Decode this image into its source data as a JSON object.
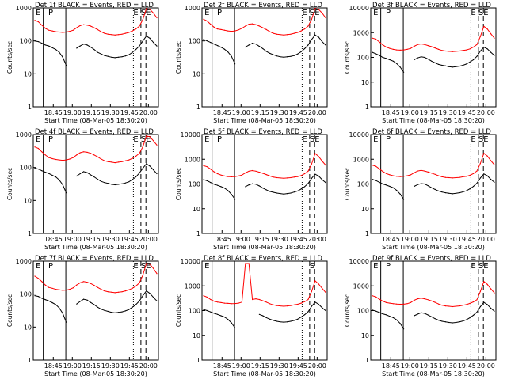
{
  "figure": {
    "colors": {
      "background": "#ffffff",
      "axes": "#000000",
      "events": "#000000",
      "lld": "#ff0000"
    }
  },
  "chart_data": [
    {
      "type": "line",
      "title": "Det 1f BLACK = Events, RED = LLD",
      "ylabel": "Counts/sec",
      "xlabel": "Start Time (08-Mar-05 18:30:20)",
      "xtick_labels": [
        "18:45",
        "19:00",
        "19:15",
        "19:30",
        "19:45",
        "20:00"
      ],
      "ytick_labels": [
        "1",
        "10",
        "100",
        "1000"
      ],
      "ylim": [
        1,
        1000
      ],
      "y_scale": "log",
      "markers": [
        "E",
        "P",
        "E",
        "S",
        "E"
      ],
      "series": [
        {
          "color": "#ff0000",
          "values": [
            420,
            380,
            300,
            240,
            210,
            200,
            190,
            185,
            180,
            185,
            195,
            210,
            250,
            290,
            310,
            300,
            280,
            250,
            220,
            190,
            170,
            160,
            155,
            150,
            155,
            160,
            170,
            180,
            200,
            230,
            280,
            450,
            950,
            900,
            700,
            500
          ]
        },
        {
          "color": "#000000",
          "values": [
            100,
            95,
            85,
            75,
            70,
            62,
            55,
            45,
            32,
            18,
            null,
            null,
            60,
            70,
            80,
            75,
            65,
            55,
            45,
            40,
            36,
            34,
            32,
            31,
            32,
            33,
            35,
            38,
            45,
            55,
            70,
            100,
            140,
            120,
            90,
            70
          ]
        }
      ]
    },
    {
      "type": "line",
      "title": "Det 2f BLACK = Events, RED = LLD",
      "ylabel": "Counts/sec",
      "xlabel": "Start Time (08-Mar-05 18:30:20)",
      "xtick_labels": [
        "18:45",
        "19:00",
        "19:15",
        "19:30",
        "19:45",
        "20:00"
      ],
      "ytick_labels": [
        "1",
        "10",
        "100",
        "1000"
      ],
      "ylim": [
        1,
        1000
      ],
      "y_scale": "log",
      "markers": [
        "E",
        "P",
        "E",
        "S",
        "E"
      ],
      "series": [
        {
          "color": "#ff0000",
          "values": [
            450,
            400,
            320,
            260,
            230,
            220,
            210,
            200,
            195,
            200,
            215,
            240,
            280,
            320,
            330,
            310,
            280,
            250,
            220,
            190,
            170,
            160,
            155,
            150,
            155,
            160,
            170,
            180,
            200,
            230,
            280,
            450,
            950,
            900,
            700,
            500
          ]
        },
        {
          "color": "#000000",
          "values": [
            110,
            100,
            90,
            80,
            72,
            64,
            56,
            46,
            34,
            20,
            null,
            null,
            65,
            75,
            85,
            80,
            68,
            58,
            48,
            42,
            38,
            35,
            33,
            32,
            33,
            34,
            36,
            40,
            47,
            58,
            75,
            110,
            150,
            130,
            95,
            75
          ]
        }
      ]
    },
    {
      "type": "line",
      "title": "Det 3f BLACK = Events, RED = LLD",
      "ylabel": "Counts/sec",
      "xlabel": "Start Time (08-Mar-05 18:30:20)",
      "xtick_labels": [
        "18:45",
        "19:00",
        "19:15",
        "19:30",
        "19:45",
        "20:00"
      ],
      "ytick_labels": [
        "1",
        "10",
        "100",
        "1000",
        "10000"
      ],
      "ylim": [
        1,
        10000
      ],
      "y_scale": "log",
      "markers": [
        "E",
        "P",
        "E",
        "S",
        "E"
      ],
      "series": [
        {
          "color": "#ff0000",
          "values": [
            600,
            550,
            420,
            320,
            260,
            230,
            210,
            200,
            195,
            200,
            210,
            230,
            280,
            330,
            350,
            330,
            300,
            270,
            240,
            210,
            190,
            180,
            175,
            170,
            175,
            180,
            190,
            200,
            220,
            260,
            330,
            700,
            1800,
            1400,
            900,
            600
          ]
        },
        {
          "color": "#000000",
          "values": [
            160,
            140,
            120,
            100,
            90,
            80,
            70,
            56,
            40,
            25,
            null,
            null,
            80,
            95,
            105,
            100,
            85,
            70,
            60,
            52,
            48,
            45,
            42,
            40,
            42,
            44,
            48,
            54,
            65,
            80,
            110,
            180,
            260,
            220,
            160,
            120
          ]
        }
      ]
    },
    {
      "type": "line",
      "title": "Det 4f BLACK = Events, RED = LLD",
      "ylabel": "Counts/sec",
      "xlabel": "Start Time (08-Mar-05 18:30:20)",
      "xtick_labels": [
        "18:45",
        "19:00",
        "19:15",
        "19:30",
        "19:45",
        "20:00"
      ],
      "ytick_labels": [
        "1",
        "10",
        "100",
        "1000"
      ],
      "ylim": [
        1,
        1000
      ],
      "y_scale": "log",
      "markers": [
        "E",
        "P",
        "E",
        "S",
        "E"
      ],
      "series": [
        {
          "color": "#ff0000",
          "values": [
            420,
            380,
            300,
            240,
            200,
            185,
            175,
            170,
            165,
            170,
            180,
            200,
            240,
            280,
            300,
            290,
            270,
            240,
            210,
            180,
            160,
            150,
            145,
            140,
            145,
            150,
            160,
            170,
            190,
            220,
            270,
            430,
            900,
            850,
            650,
            480
          ]
        },
        {
          "color": "#000000",
          "values": [
            95,
            90,
            80,
            72,
            66,
            58,
            52,
            42,
            30,
            17,
            null,
            null,
            55,
            65,
            75,
            70,
            60,
            52,
            44,
            38,
            35,
            33,
            31,
            30,
            31,
            32,
            34,
            37,
            43,
            52,
            68,
            95,
            130,
            110,
            85,
            65
          ]
        }
      ]
    },
    {
      "type": "line",
      "title": "Det 5f BLACK = Events, RED = LLD",
      "ylabel": "Counts/sec",
      "xlabel": "Start Time (08-Mar-05 18:30:20)",
      "xtick_labels": [
        "18:45",
        "19:00",
        "19:15",
        "19:30",
        "19:45",
        "20:00"
      ],
      "ytick_labels": [
        "1",
        "10",
        "100",
        "1000",
        "10000"
      ],
      "ylim": [
        1,
        10000
      ],
      "y_scale": "log",
      "markers": [
        "E",
        "P",
        "E",
        "S",
        "E"
      ],
      "series": [
        {
          "color": "#ff0000",
          "values": [
            550,
            500,
            400,
            310,
            260,
            230,
            210,
            200,
            195,
            200,
            210,
            230,
            280,
            330,
            350,
            330,
            300,
            270,
            240,
            210,
            190,
            180,
            175,
            170,
            175,
            180,
            190,
            200,
            220,
            260,
            330,
            650,
            1700,
            1300,
            850,
            580
          ]
        },
        {
          "color": "#000000",
          "values": [
            150,
            135,
            115,
            98,
            88,
            78,
            68,
            54,
            38,
            24,
            null,
            null,
            78,
            92,
            102,
            98,
            83,
            68,
            58,
            50,
            46,
            43,
            41,
            39,
            41,
            43,
            47,
            52,
            63,
            78,
            105,
            170,
            250,
            210,
            150,
            115
          ]
        }
      ]
    },
    {
      "type": "line",
      "title": "Det 6f BLACK = Events, RED = LLD",
      "ylabel": "Counts/sec",
      "xlabel": "Start Time (08-Mar-05 18:30:20)",
      "xtick_labels": [
        "18:45",
        "19:00",
        "19:15",
        "19:30",
        "19:45",
        "20:00"
      ],
      "ytick_labels": [
        "1",
        "10",
        "100",
        "1000",
        "10000"
      ],
      "ylim": [
        1,
        10000
      ],
      "y_scale": "log",
      "markers": [
        "E",
        "P",
        "E",
        "S",
        "E"
      ],
      "series": [
        {
          "color": "#ff0000",
          "values": [
            580,
            520,
            410,
            320,
            265,
            235,
            215,
            205,
            200,
            205,
            215,
            235,
            285,
            335,
            355,
            335,
            305,
            275,
            245,
            215,
            195,
            185,
            180,
            175,
            180,
            185,
            195,
            205,
            225,
            265,
            335,
            680,
            1750,
            1350,
            880,
            600
          ]
        },
        {
          "color": "#000000",
          "values": [
            155,
            138,
            118,
            100,
            90,
            80,
            70,
            55,
            39,
            24,
            null,
            null,
            80,
            94,
            104,
            100,
            85,
            70,
            60,
            52,
            47,
            44,
            42,
            40,
            42,
            44,
            48,
            53,
            64,
            80,
            108,
            175,
            255,
            215,
            155,
            118
          ]
        }
      ]
    },
    {
      "type": "line",
      "title": "Det 7f BLACK = Events, RED = LLD",
      "ylabel": "Counts/sec",
      "xlabel": "Start Time (08-Mar-05 18:30:20)",
      "xtick_labels": [
        "18:45",
        "19:00",
        "19:15",
        "19:30",
        "19:45",
        "20:00"
      ],
      "ytick_labels": [
        "1",
        "10",
        "100",
        "1000"
      ],
      "ylim": [
        1,
        1000
      ],
      "y_scale": "log",
      "markers": [
        "E",
        "P",
        "E",
        "S",
        "E"
      ],
      "series": [
        {
          "color": "#ff0000",
          "values": [
            350,
            300,
            240,
            190,
            160,
            150,
            140,
            135,
            130,
            132,
            140,
            155,
            190,
            220,
            240,
            230,
            210,
            185,
            160,
            140,
            125,
            118,
            114,
            110,
            114,
            118,
            125,
            135,
            150,
            175,
            220,
            380,
            850,
            800,
            600,
            420
          ]
        },
        {
          "color": "#000000",
          "values": [
            90,
            85,
            75,
            68,
            62,
            55,
            48,
            38,
            26,
            14,
            null,
            null,
            50,
            60,
            70,
            66,
            56,
            48,
            40,
            35,
            32,
            30,
            28,
            27,
            28,
            29,
            31,
            34,
            40,
            48,
            62,
            90,
            125,
            105,
            80,
            62
          ]
        }
      ]
    },
    {
      "type": "line",
      "title": "Det 8f BLACK = Events, RED = LLD",
      "ylabel": "Counts/sec",
      "xlabel": "Start Time (08-Mar-05 18:30:20)",
      "xtick_labels": [
        "18:45",
        "19:00",
        "19:15",
        "19:30",
        "19:45",
        "20:00"
      ],
      "ytick_labels": [
        "1",
        "10",
        "100",
        "1000",
        "10000"
      ],
      "ylim": [
        1,
        10000
      ],
      "y_scale": "log",
      "markers": [
        "E",
        "S"
      ],
      "series": [
        {
          "color": "#ff0000",
          "values": [
            400,
            350,
            280,
            240,
            220,
            210,
            200,
            195,
            190,
            192,
            200,
            220,
            8000,
            8000,
            280,
            300,
            280,
            250,
            220,
            190,
            170,
            160,
            155,
            150,
            155,
            160,
            170,
            180,
            200,
            230,
            280,
            600,
            1600,
            1200,
            800,
            550
          ]
        },
        {
          "color": "#000000",
          "values": [
            110,
            100,
            88,
            78,
            70,
            62,
            55,
            44,
            32,
            20,
            null,
            null,
            null,
            null,
            null,
            null,
            70,
            62,
            52,
            45,
            40,
            37,
            35,
            34,
            35,
            37,
            40,
            45,
            55,
            68,
            90,
            150,
            220,
            180,
            130,
            100
          ]
        }
      ]
    },
    {
      "type": "line",
      "title": "Det 9f BLACK = Events, RED = LLD",
      "ylabel": "Counts/sec",
      "xlabel": "Start Time (08-Mar-05 18:30:20)",
      "xtick_labels": [
        "18:45",
        "19:00",
        "19:15",
        "19:30",
        "19:45",
        "20:00"
      ],
      "ytick_labels": [
        "1",
        "10",
        "100",
        "1000",
        "10000"
      ],
      "ylim": [
        1,
        10000
      ],
      "y_scale": "log",
      "markers": [
        "E",
        "P",
        "E",
        "S",
        "E"
      ],
      "series": [
        {
          "color": "#ff0000",
          "values": [
            400,
            360,
            290,
            240,
            210,
            200,
            190,
            185,
            180,
            182,
            190,
            210,
            260,
            300,
            320,
            300,
            275,
            245,
            215,
            185,
            165,
            155,
            150,
            145,
            150,
            155,
            165,
            175,
            195,
            225,
            275,
            600,
            1500,
            1150,
            760,
            520
          ]
        },
        {
          "color": "#000000",
          "values": [
            105,
            96,
            84,
            74,
            67,
            59,
            52,
            42,
            30,
            18,
            null,
            null,
            62,
            72,
            82,
            77,
            66,
            56,
            47,
            41,
            37,
            35,
            33,
            32,
            33,
            35,
            38,
            43,
            52,
            65,
            86,
            145,
            215,
            175,
            125,
            95
          ]
        }
      ]
    }
  ]
}
